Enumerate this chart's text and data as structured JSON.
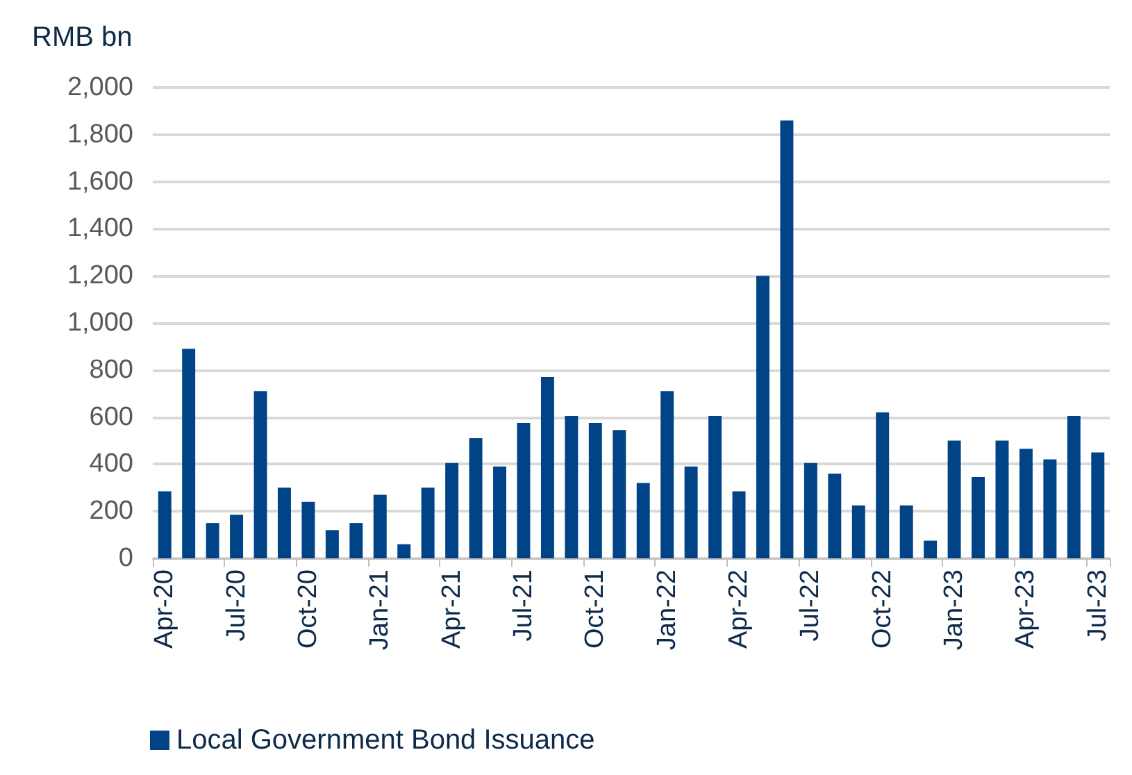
{
  "chart_data": {
    "type": "bar",
    "ylabel": "RMB bn",
    "categories": [
      "Apr-20",
      null,
      null,
      "Jul-20",
      null,
      null,
      "Oct-20",
      null,
      null,
      "Jan-21",
      null,
      null,
      "Apr-21",
      null,
      null,
      "Jul-21",
      null,
      null,
      "Oct-21",
      null,
      null,
      "Jan-22",
      null,
      null,
      "Apr-22",
      null,
      null,
      "Jul-22",
      null,
      null,
      "Oct-22",
      null,
      null,
      "Jan-23",
      null,
      null,
      "Apr-23",
      null,
      null,
      "Jul-23"
    ],
    "series": [
      {
        "name": "Local Government Bond Issuance",
        "color": "#004386",
        "values": [
          285,
          890,
          150,
          185,
          710,
          300,
          240,
          120,
          150,
          270,
          60,
          300,
          405,
          510,
          390,
          575,
          770,
          605,
          575,
          545,
          320,
          710,
          390,
          605,
          285,
          1200,
          1860,
          405,
          360,
          225,
          620,
          225,
          75,
          500,
          345,
          500,
          465,
          420,
          605,
          450
        ]
      }
    ],
    "ylim": [
      0,
      2000
    ],
    "yticks": [
      0,
      200,
      400,
      600,
      800,
      {
        "value": 1000,
        "label": "1,000"
      },
      {
        "value": 1200,
        "label": "1,200"
      },
      {
        "value": 1400,
        "label": "1,400"
      },
      {
        "value": 1600,
        "label": "1,600"
      },
      {
        "value": 1800,
        "label": "1,800"
      },
      {
        "value": 2000,
        "label": "2,000"
      }
    ],
    "grid": "y",
    "legend": "bottom"
  }
}
